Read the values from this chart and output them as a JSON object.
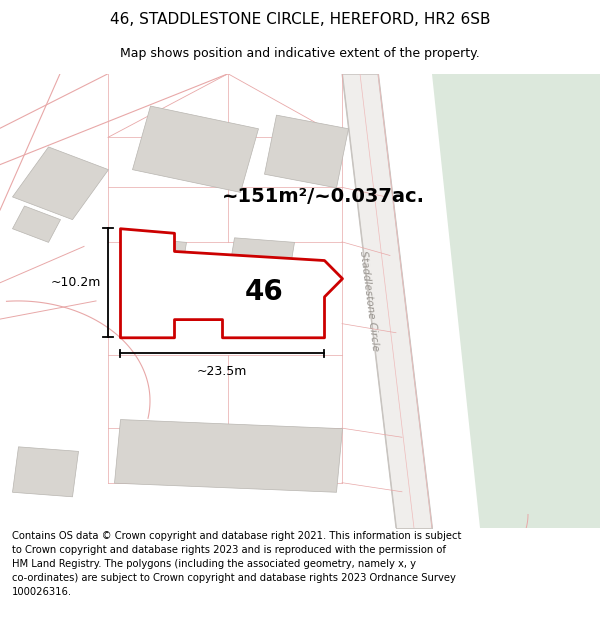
{
  "title_line1": "46, STADDLESTONE CIRCLE, HEREFORD, HR2 6SB",
  "title_line2": "Map shows position and indicative extent of the property.",
  "footer_text": "Contains OS data © Crown copyright and database right 2021. This information is subject\nto Crown copyright and database rights 2023 and is reproduced with the permission of\nHM Land Registry. The polygons (including the associated geometry, namely x, y\nco-ordinates) are subject to Crown copyright and database rights 2023 Ordnance Survey\n100026316.",
  "area_label": "~151m²/~0.037ac.",
  "number_label": "46",
  "dim_width": "~23.5m",
  "dim_height": "~10.2m",
  "road_label": "Staddlestone Circle",
  "map_bg": "#f8f7f5",
  "building_fill": "#d8d5d0",
  "building_edge": "#b8b5b0",
  "highlight_color": "#cc0000",
  "highlight_fill": "#ffffff",
  "pink_line": "#e8a8a8",
  "pink_line_thin": "#eebbbb",
  "green_area": "#dce8dc",
  "road_bg": "#f0eeec",
  "road_line_color": "#c8c4c0",
  "title_fontsize": 11,
  "subtitle_fontsize": 9,
  "footer_fontsize": 7.2,
  "dim_fontsize": 9,
  "area_fontsize": 14,
  "number_fontsize": 20
}
